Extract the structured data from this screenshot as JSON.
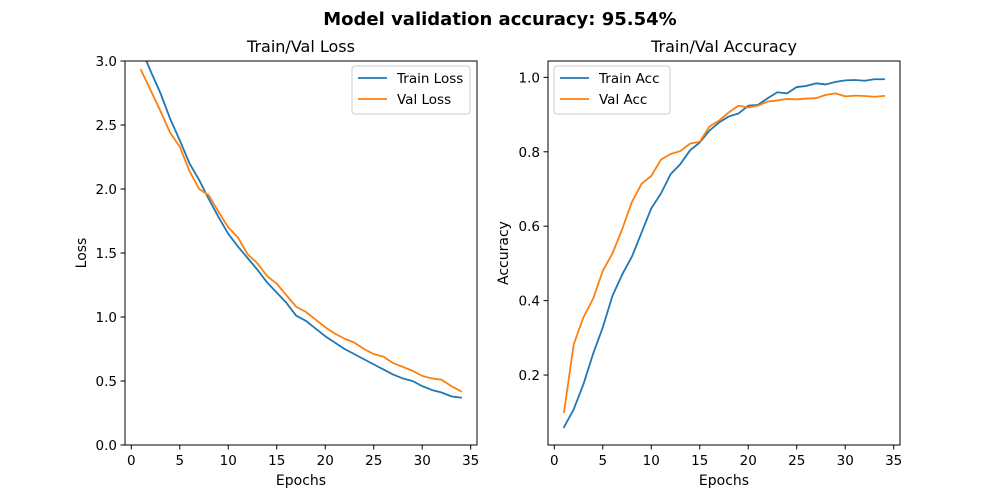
{
  "figure": {
    "suptitle": "Model validation accuracy: 95.54%"
  },
  "chart_data": [
    {
      "type": "line",
      "title": "Train/Val Loss",
      "xlabel": "Epochs",
      "ylabel": "Loss",
      "xlim": [
        -0.65,
        35.65
      ],
      "ylim": [
        0,
        3.0
      ],
      "xticks": [
        0,
        5,
        10,
        15,
        20,
        25,
        30,
        35
      ],
      "yticks": [
        0.0,
        0.5,
        1.0,
        1.5,
        2.0,
        2.5,
        3.0
      ],
      "xtick_labels": [
        "0",
        "5",
        "10",
        "15",
        "20",
        "25",
        "30",
        "35"
      ],
      "ytick_labels": [
        "0.0",
        "0.5",
        "1.0",
        "1.5",
        "2.0",
        "2.5",
        "3.0"
      ],
      "grid": false,
      "legend": "top-right",
      "x": [
        1,
        2,
        3,
        4,
        5,
        6,
        7,
        8,
        9,
        10,
        11,
        12,
        13,
        14,
        15,
        16,
        17,
        18,
        19,
        20,
        21,
        22,
        23,
        24,
        25,
        26,
        27,
        28,
        29,
        30,
        31,
        32,
        33,
        34
      ],
      "series": [
        {
          "name": "Train Loss",
          "color": "#1f77b4",
          "values": [
            3.1,
            2.92,
            2.75,
            2.55,
            2.38,
            2.2,
            2.07,
            1.92,
            1.78,
            1.65,
            1.55,
            1.46,
            1.37,
            1.27,
            1.19,
            1.11,
            1.01,
            0.97,
            0.91,
            0.85,
            0.8,
            0.75,
            0.71,
            0.67,
            0.63,
            0.59,
            0.55,
            0.52,
            0.5,
            0.46,
            0.43,
            0.41,
            0.38,
            0.37
          ]
        },
        {
          "name": "Val Loss",
          "color": "#ff7f0e",
          "values": [
            2.93,
            2.77,
            2.61,
            2.44,
            2.33,
            2.14,
            2.0,
            1.95,
            1.82,
            1.7,
            1.62,
            1.49,
            1.42,
            1.32,
            1.26,
            1.17,
            1.08,
            1.04,
            0.98,
            0.92,
            0.87,
            0.83,
            0.8,
            0.75,
            0.71,
            0.69,
            0.64,
            0.61,
            0.58,
            0.54,
            0.52,
            0.51,
            0.46,
            0.42
          ]
        }
      ]
    },
    {
      "type": "line",
      "title": "Train/Val Accuracy",
      "xlabel": "Epochs",
      "ylabel": "Accuracy",
      "xlim": [
        -0.65,
        35.65
      ],
      "ylim": [
        0.012,
        1.044
      ],
      "xticks": [
        0,
        5,
        10,
        15,
        20,
        25,
        30,
        35
      ],
      "yticks": [
        0.2,
        0.4,
        0.6,
        0.8,
        1.0
      ],
      "xtick_labels": [
        "0",
        "5",
        "10",
        "15",
        "20",
        "25",
        "30",
        "35"
      ],
      "ytick_labels": [
        "0.2",
        "0.4",
        "0.6",
        "0.8",
        "1.0"
      ],
      "grid": false,
      "legend": "top-left",
      "x": [
        1,
        2,
        3,
        4,
        5,
        6,
        7,
        8,
        9,
        10,
        11,
        12,
        13,
        14,
        15,
        16,
        17,
        18,
        19,
        20,
        21,
        22,
        23,
        24,
        25,
        26,
        27,
        28,
        29,
        30,
        31,
        32,
        33,
        34
      ],
      "series": [
        {
          "name": "Train Acc",
          "color": "#1f77b4",
          "values": [
            0.06,
            0.108,
            0.175,
            0.257,
            0.328,
            0.413,
            0.47,
            0.518,
            0.583,
            0.648,
            0.688,
            0.74,
            0.767,
            0.804,
            0.825,
            0.857,
            0.879,
            0.895,
            0.903,
            0.924,
            0.926,
            0.944,
            0.96,
            0.957,
            0.974,
            0.977,
            0.984,
            0.981,
            0.988,
            0.992,
            0.993,
            0.991,
            0.995,
            0.995
          ]
        },
        {
          "name": "Val Acc",
          "color": "#ff7f0e",
          "values": [
            0.1,
            0.282,
            0.355,
            0.405,
            0.48,
            0.527,
            0.592,
            0.665,
            0.714,
            0.735,
            0.779,
            0.794,
            0.802,
            0.822,
            0.827,
            0.868,
            0.884,
            0.906,
            0.924,
            0.919,
            0.924,
            0.935,
            0.938,
            0.942,
            0.941,
            0.943,
            0.944,
            0.953,
            0.957,
            0.949,
            0.951,
            0.95,
            0.948,
            0.95
          ]
        }
      ]
    }
  ]
}
